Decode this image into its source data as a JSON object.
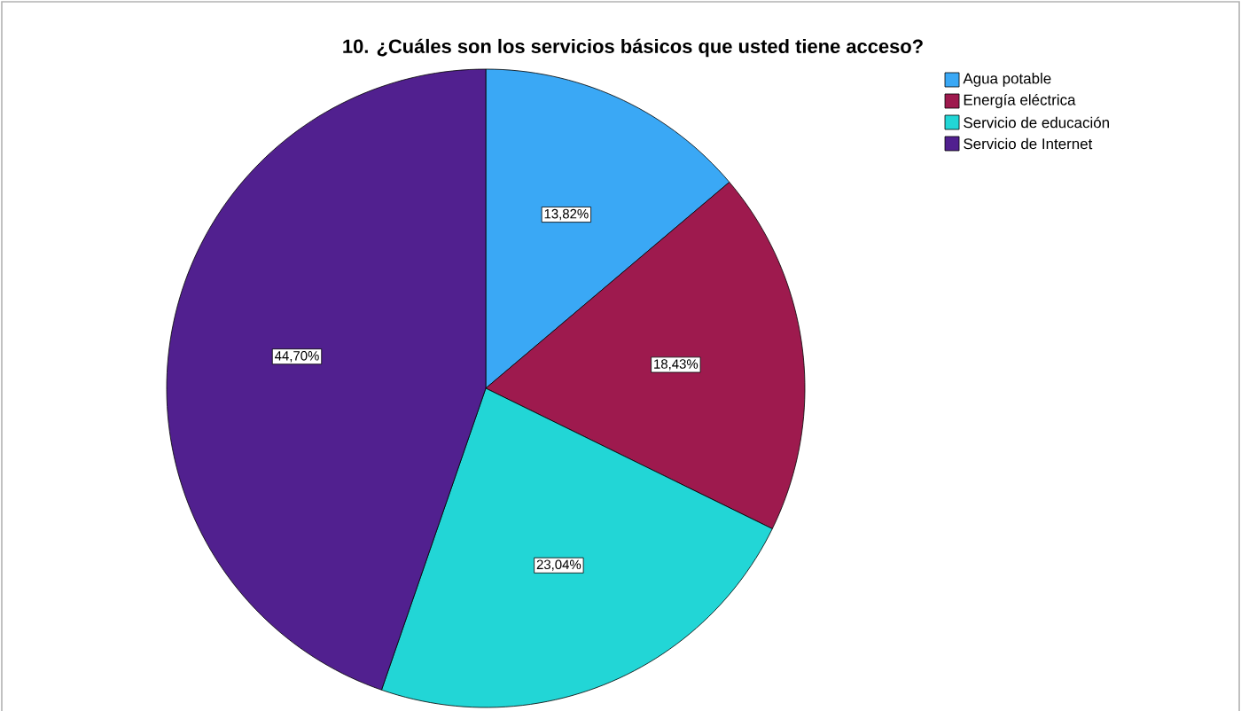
{
  "chart_data": {
    "type": "pie",
    "title": "10.  ¿Cuáles son los servicios básicos que usted tiene acceso?",
    "categories": [
      "Agua potable",
      "Energía eléctrica",
      "Servicio de educación",
      "Servicio de Internet"
    ],
    "values": [
      13.82,
      18.43,
      23.04,
      44.7
    ],
    "value_labels": [
      "13,82%",
      "18,43%",
      "23,04%",
      "44,70%"
    ],
    "colors": [
      "#3aa8f5",
      "#9e1a4e",
      "#22d6d6",
      "#51208f"
    ],
    "legend": "top right"
  }
}
